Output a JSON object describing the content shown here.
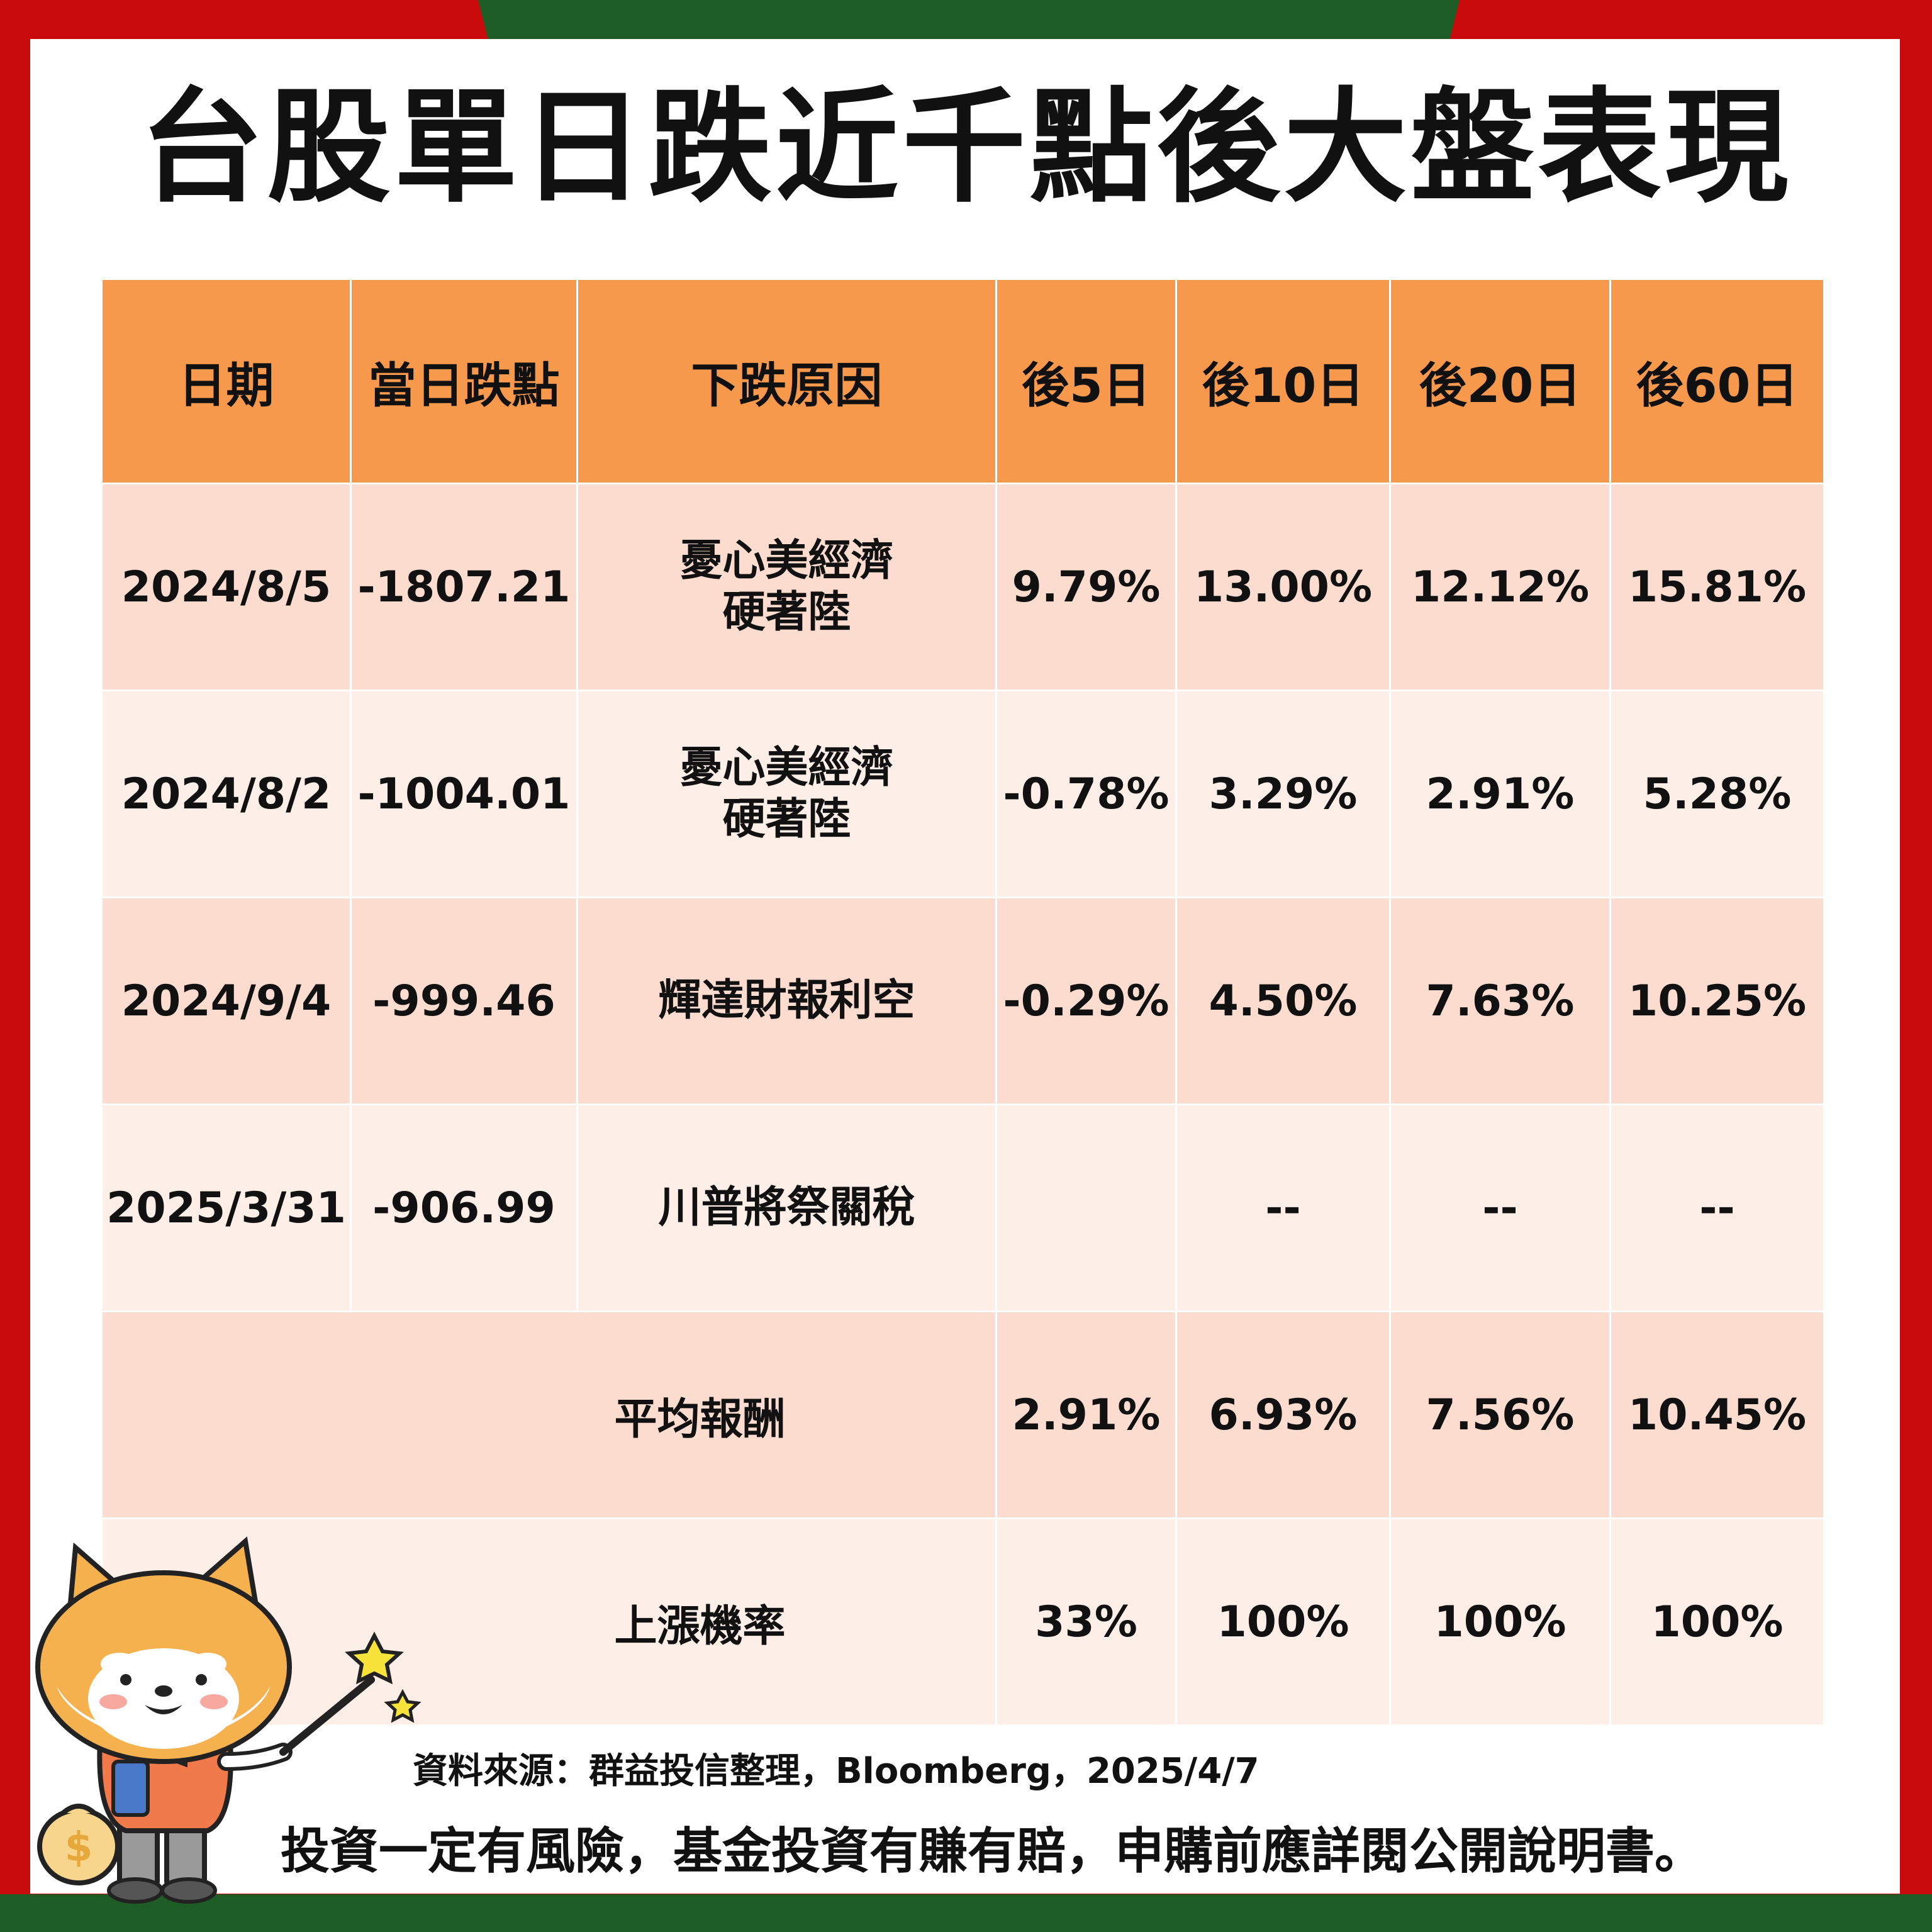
{
  "title": "台股單日跌近千點後大盤表現",
  "table": {
    "headers": [
      "日期",
      "當日跌點",
      "下跌原因",
      "後5日",
      "後10日",
      "後20日",
      "後60日"
    ],
    "rows": [
      {
        "date": "2024/8/5",
        "drop": "-1807.21",
        "reason_line1": "憂心美經濟",
        "reason_line2": "硬著陸",
        "d5": "9.79%",
        "d10": "13.00%",
        "d20": "12.12%",
        "d60": "15.81%"
      },
      {
        "date": "2024/8/2",
        "drop": "-1004.01",
        "reason_line1": "憂心美經濟",
        "reason_line2": "硬著陸",
        "d5": "-0.78%",
        "d10": "3.29%",
        "d20": "2.91%",
        "d60": "5.28%"
      },
      {
        "date": "2024/9/4",
        "drop": "-999.46",
        "reason_line1": "輝達財報利空",
        "reason_line2": "",
        "d5": "-0.29%",
        "d10": "4.50%",
        "d20": "7.63%",
        "d60": "10.25%"
      },
      {
        "date": "2025/3/31",
        "drop": "-906.99",
        "reason_line1": "川普將祭關稅",
        "reason_line2": "",
        "d5": "",
        "d10": "--",
        "d20": "--",
        "d60": "--"
      }
    ],
    "average": {
      "label": "平均報酬",
      "d5": "2.91%",
      "d10": "6.93%",
      "d20": "7.56%",
      "d60": "10.45%"
    },
    "up_rate": {
      "label": "上漲機率",
      "d5": "33%",
      "d10": "100%",
      "d20": "100%",
      "d60": "100%"
    }
  },
  "source": "資料來源：群益投信整理，Bloomberg，2025/4/7",
  "disclaimer": "投資一定有風險，基金投資有賺有賠，申購前應詳閱公開說明書。",
  "colors": {
    "frame_red": "#c80a0a",
    "frame_green": "#1d5c24",
    "header_orange": "#f7994d",
    "row_dark": "#fbdccf",
    "row_light": "#fdeee8"
  }
}
